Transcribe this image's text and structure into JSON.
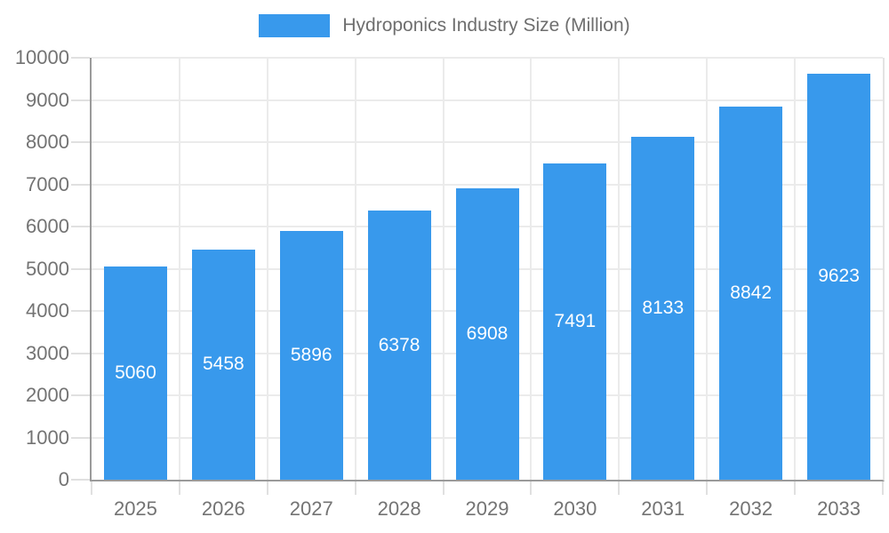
{
  "legend": {
    "label": "Hydroponics Industry Size (Million)"
  },
  "colors": {
    "bar": "#3899ec",
    "grid": "#ebebeb",
    "tick": "#e0e0e0",
    "axis": "#9a9a9a",
    "text": "#737373",
    "value_label": "#ffffff"
  },
  "chart_data": {
    "type": "bar",
    "title": "Hydroponics Industry Size (Million)",
    "categories": [
      "2025",
      "2026",
      "2027",
      "2028",
      "2029",
      "2030",
      "2031",
      "2032",
      "2033"
    ],
    "values": [
      5060,
      5458,
      5896,
      6378,
      6908,
      7491,
      8133,
      8842,
      9623
    ],
    "series_name": "Hydroponics Industry Size (Million)",
    "xlabel": "",
    "ylabel": "",
    "ylim": [
      0,
      10000
    ],
    "ytick_step": 1000,
    "grid": true,
    "legend_position": "top",
    "value_labels": "inside-center"
  }
}
